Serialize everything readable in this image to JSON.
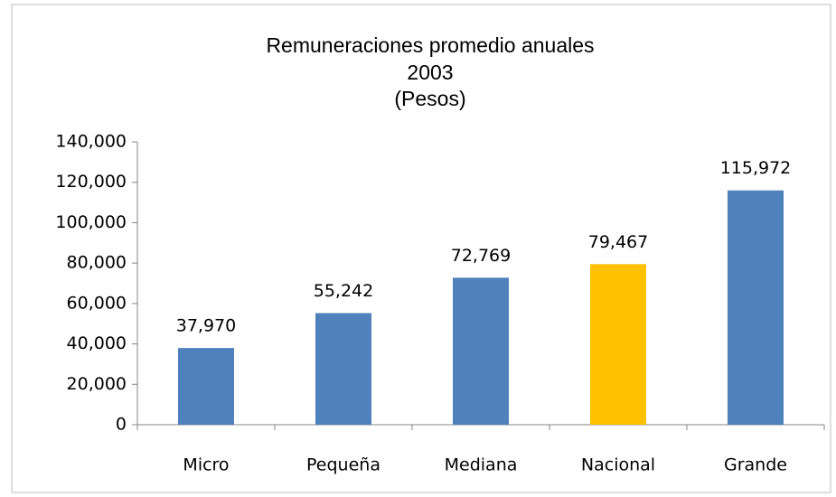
{
  "chart_data": {
    "type": "bar",
    "title": [
      "Remuneraciones promedio anuales",
      "2003",
      "(Pesos)"
    ],
    "categories": [
      "Micro",
      "Pequeña",
      "Mediana",
      "Nacional",
      "Grande"
    ],
    "values": [
      37970,
      55242,
      72769,
      79467,
      115972
    ],
    "value_labels": [
      "37,970",
      "55,242",
      "72,769",
      "79,467",
      "115,972"
    ],
    "colors": [
      "#4f81bd",
      "#4f81bd",
      "#4f81bd",
      "#ffc000",
      "#4f81bd"
    ],
    "ylim": [
      0,
      140000
    ],
    "yticks": [
      0,
      {
        "value": 20000,
        "label": "20,000"
      },
      {
        "value": 40000,
        "label": "40,000"
      },
      {
        "value": 60000,
        "label": "60,000"
      },
      {
        "value": 80000,
        "label": "80,000"
      },
      {
        "value": 100000,
        "label": "100,000"
      },
      {
        "value": 120000,
        "label": "120,000"
      },
      {
        "value": 140000,
        "label": "140,000"
      }
    ],
    "grid": false
  }
}
